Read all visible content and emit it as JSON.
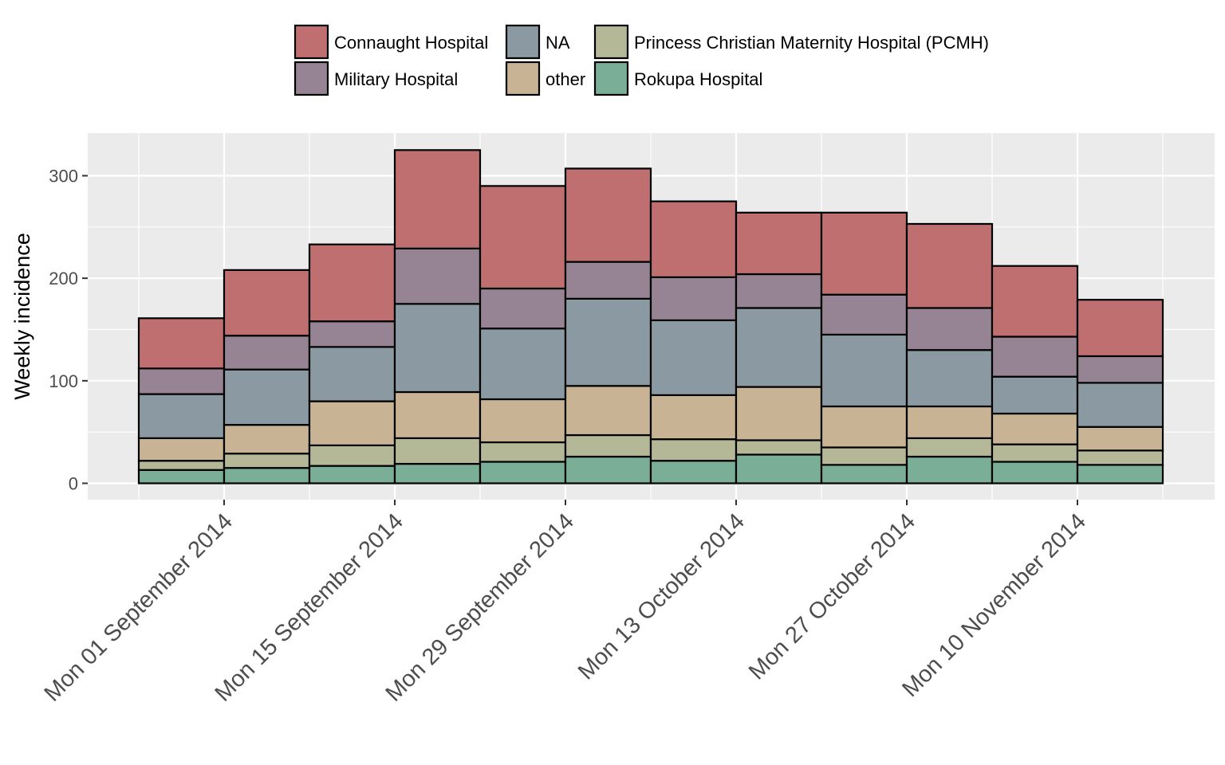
{
  "chart_data": {
    "type": "bar",
    "stacked": true,
    "ylabel": "Weekly incidence",
    "xlabel": "",
    "ylim": [
      0,
      340
    ],
    "y_ticks": [
      0,
      100,
      200,
      300
    ],
    "grid": true,
    "legend_position": "top",
    "x_tick_labels": [
      "Mon 01 September 2014",
      "Mon 15 September 2014",
      "Mon 29 September 2014",
      "Mon 13 October 2014",
      "Mon 27 October 2014",
      "Mon 10 November 2014"
    ],
    "categories": [
      "2014-08-25",
      "2014-09-01",
      "2014-09-08",
      "2014-09-15",
      "2014-09-22",
      "2014-09-29",
      "2014-10-06",
      "2014-10-13",
      "2014-10-20",
      "2014-10-27",
      "2014-11-03",
      "2014-11-10"
    ],
    "series": [
      {
        "name": "Rokupa Hospital",
        "color": "#7aae96",
        "values": [
          13,
          15,
          17,
          19,
          21,
          26,
          22,
          28,
          18,
          26,
          21,
          18
        ]
      },
      {
        "name": "Princess Christian Maternity Hospital (PCMH)",
        "color": "#b4b896",
        "values": [
          9,
          14,
          20,
          25,
          19,
          21,
          21,
          14,
          17,
          18,
          17,
          14
        ]
      },
      {
        "name": "other",
        "color": "#c8b495",
        "values": [
          22,
          28,
          43,
          45,
          42,
          48,
          43,
          52,
          40,
          31,
          30,
          23
        ]
      },
      {
        "name": "NA",
        "color": "#8b9aa2",
        "values": [
          43,
          54,
          53,
          86,
          69,
          85,
          73,
          77,
          70,
          55,
          36,
          43
        ]
      },
      {
        "name": "Military Hospital",
        "color": "#968393",
        "values": [
          25,
          33,
          25,
          54,
          39,
          36,
          42,
          33,
          39,
          41,
          39,
          26
        ]
      },
      {
        "name": "Connaught Hospital",
        "color": "#bf6f6f",
        "values": [
          49,
          64,
          75,
          96,
          100,
          91,
          74,
          60,
          80,
          82,
          69,
          55
        ]
      }
    ],
    "legend_order": [
      "Connaught Hospital",
      "Military Hospital",
      "NA",
      "other",
      "Princess Christian Maternity Hospital (PCMH)",
      "Rokupa Hospital"
    ]
  }
}
